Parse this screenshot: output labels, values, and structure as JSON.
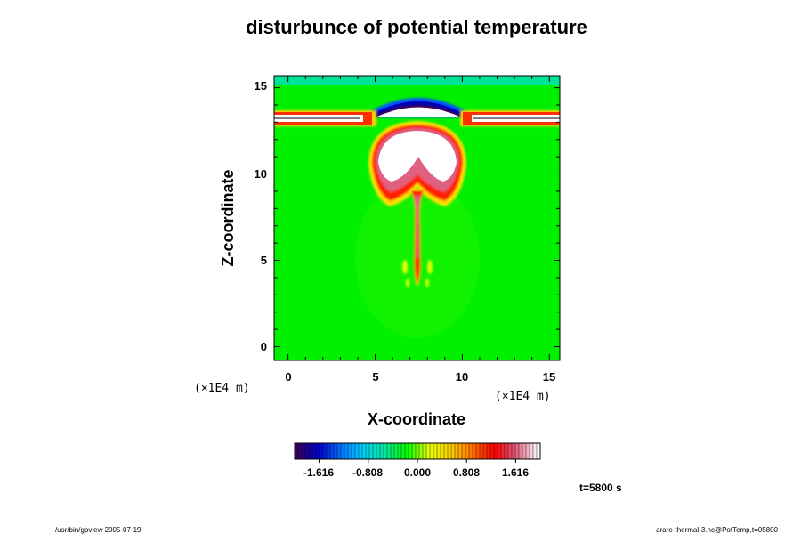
{
  "chart_data": {
    "type": "heatmap",
    "title": "disturbunce of potential temperature",
    "xlabel": "X-coordinate",
    "ylabel": "Z-coordinate",
    "xlim": [
      -0.8,
      15.6
    ],
    "ylim": [
      -0.8,
      15.7
    ],
    "x_ticks": [
      "0",
      "5",
      "10",
      "15"
    ],
    "y_ticks": [
      "0",
      "5",
      "10",
      "15"
    ],
    "x_unit": "(×1E4 m)",
    "y_unit": "(×1E4 m)",
    "colorbar": {
      "ticks": [
        "-1.616",
        "-0.808",
        "0.000",
        "0.808",
        "1.616"
      ],
      "tick_values": [
        -1.616,
        -0.808,
        0.0,
        0.808,
        1.616
      ],
      "range": [
        -2.02,
        2.02
      ]
    },
    "features": {
      "background": "green (~0)",
      "plume_center_x": 7.5,
      "cap_top_z": 13.0,
      "cap_bottom_z": 10.0,
      "stem_bottom_z": 3.7,
      "inversion_layer_z": 13.0,
      "negative_dome_z": [
        13.0,
        14.2
      ]
    },
    "colors": [
      "#3a0060",
      "#0000c8",
      "#0070ff",
      "#00d0ff",
      "#00e8a0",
      "#00ff00",
      "#e0ff00",
      "#ffd000",
      "#ff7000",
      "#ff0000",
      "#e06080",
      "#ffffff"
    ]
  },
  "footer": {
    "time_label": "t=5800 s",
    "left_note": "/usr/bin/gpview 2005-07-19",
    "right_note": "arare-thermal-3.nc@PotTemp,t=05800"
  }
}
